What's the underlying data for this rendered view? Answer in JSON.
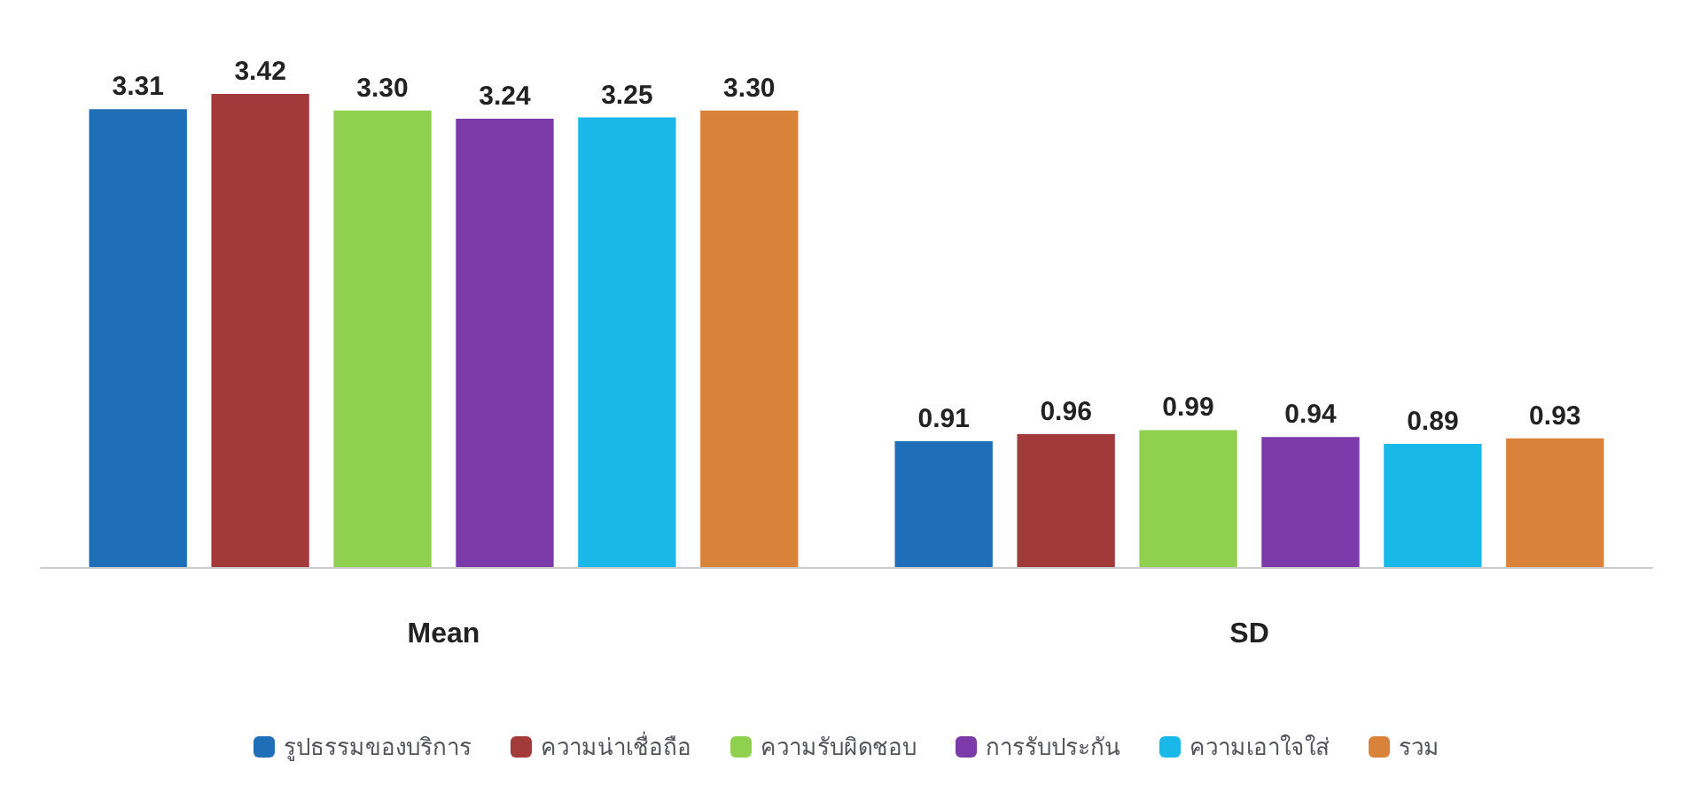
{
  "chart_data": {
    "type": "bar",
    "categories": [
      "Mean",
      "SD"
    ],
    "series": [
      {
        "name": "รูปธรรมของบริการ",
        "color": "#1f6fb8",
        "values": [
          3.31,
          0.91
        ],
        "value_labels": [
          "3.31",
          "0.91"
        ]
      },
      {
        "name": "ความน่าเชื่อถือ",
        "color": "#a33a3a",
        "values": [
          3.42,
          0.96
        ],
        "value_labels": [
          "3.42",
          "0.96"
        ]
      },
      {
        "name": "ความรับผิดชอบ",
        "color": "#8fd14f",
        "values": [
          3.3,
          0.99
        ],
        "value_labels": [
          "3.30",
          "0.99"
        ]
      },
      {
        "name": "การรับประกัน",
        "color": "#7b3aa8",
        "values": [
          3.24,
          0.94
        ],
        "value_labels": [
          "3.24",
          "0.94"
        ]
      },
      {
        "name": "ความเอาใจใส่",
        "color": "#19b8e8",
        "values": [
          3.25,
          0.89
        ],
        "value_labels": [
          "3.25",
          "0.89"
        ]
      },
      {
        "name": "รวม",
        "color": "#d9823a",
        "values": [
          3.3,
          0.93
        ],
        "value_labels": [
          "3.30",
          "0.93"
        ]
      }
    ],
    "legend": "bottom"
  }
}
